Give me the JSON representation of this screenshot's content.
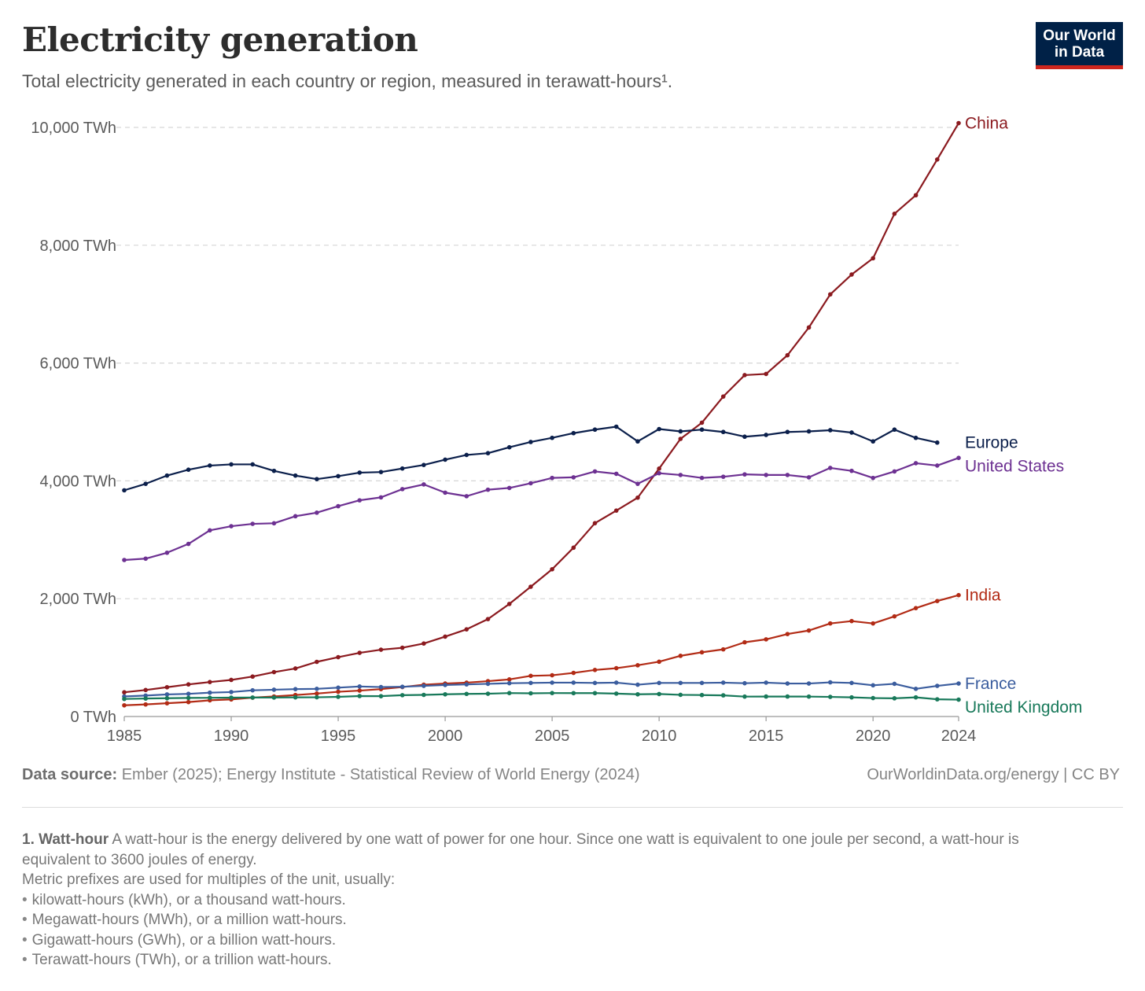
{
  "header": {
    "title": "Electricity generation",
    "subtitle": "Total electricity generated in each country or region, measured in terawatt-hours¹.",
    "logo_line1": "Our World",
    "logo_line2": "in Data"
  },
  "footer": {
    "source_label": "Data source:",
    "source_text": "Ember (2025); Energy Institute - Statistical Review of World Energy (2024)",
    "license": "OurWorldinData.org/energy | CC BY"
  },
  "notes": {
    "num": "1.",
    "term": "Watt-hour",
    "line1": "A watt-hour is the energy delivered by one watt of power for one hour. Since one watt is equivalent to one joule per second, a watt-hour is equivalent to 3600 joules of energy.",
    "line2": "Metric prefixes are used for multiples of the unit, usually:",
    "bullets": [
      "kilowatt-hours (kWh), or a thousand watt-hours.",
      "Megawatt-hours (MWh), or a million watt-hours.",
      "Gigawatt-hours (GWh), or a billion watt-hours.",
      "Terawatt-hours (TWh), or a trillion watt-hours."
    ]
  },
  "chart_data": {
    "type": "line",
    "title": "Electricity generation",
    "subtitle": "Total electricity generated in each country or region, measured in terawatt-hours¹.",
    "xlim": [
      1985,
      2024
    ],
    "ylim": [
      0,
      10000
    ],
    "x_ticks": [
      1985,
      1990,
      1995,
      2000,
      2005,
      2010,
      2015,
      2020,
      2024
    ],
    "y_ticks": [
      {
        "value": 0,
        "label": "0 TWh"
      },
      {
        "value": 2000,
        "label": "2,000 TWh"
      },
      {
        "value": 4000,
        "label": "4,000 TWh"
      },
      {
        "value": 6000,
        "label": "6,000 TWh"
      },
      {
        "value": 8000,
        "label": "8,000 TWh"
      },
      {
        "value": 10000,
        "label": "10,000 TWh"
      }
    ],
    "grid": "horizontal dashed",
    "legend": "inline labels at line ends (right)",
    "series": [
      {
        "name": "China",
        "color": "#8b1a1f",
        "x": [
          1985,
          1986,
          1987,
          1988,
          1989,
          1990,
          1991,
          1992,
          1993,
          1994,
          1995,
          1996,
          1997,
          1998,
          1999,
          2000,
          2001,
          2002,
          2003,
          2004,
          2005,
          2006,
          2007,
          2008,
          2009,
          2010,
          2011,
          2012,
          2013,
          2014,
          2015,
          2016,
          2017,
          2018,
          2019,
          2020,
          2021,
          2022,
          2023,
          2024
        ],
        "values": [
          411,
          450,
          497,
          545,
          585,
          621,
          678,
          754,
          815,
          928,
          1007,
          1081,
          1134,
          1167,
          1239,
          1356,
          1480,
          1654,
          1911,
          2203,
          2500,
          2866,
          3282,
          3496,
          3715,
          4208,
          4713,
          4988,
          5432,
          5795,
          5815,
          6133,
          6604,
          7166,
          7503,
          7779,
          8534,
          8849,
          9456,
          10073
        ]
      },
      {
        "name": "Europe",
        "color": "#0b1f4b",
        "x": [
          1985,
          1986,
          1987,
          1988,
          1989,
          1990,
          1991,
          1992,
          1993,
          1994,
          1995,
          1996,
          1997,
          1998,
          1999,
          2000,
          2001,
          2002,
          2003,
          2004,
          2005,
          2006,
          2007,
          2008,
          2009,
          2010,
          2011,
          2012,
          2013,
          2014,
          2015,
          2016,
          2017,
          2018,
          2019,
          2020,
          2021,
          2022,
          2023
        ],
        "values": [
          3840,
          3950,
          4090,
          4190,
          4260,
          4280,
          4280,
          4170,
          4090,
          4030,
          4080,
          4140,
          4150,
          4210,
          4270,
          4360,
          4440,
          4470,
          4570,
          4660,
          4730,
          4810,
          4870,
          4920,
          4670,
          4880,
          4840,
          4870,
          4830,
          4750,
          4780,
          4830,
          4840,
          4860,
          4820,
          4670,
          4870,
          4730,
          4650
        ]
      },
      {
        "name": "United States",
        "color": "#6d3192",
        "x": [
          1985,
          1986,
          1987,
          1988,
          1989,
          1990,
          1991,
          1992,
          1993,
          1994,
          1995,
          1996,
          1997,
          1998,
          1999,
          2000,
          2001,
          2002,
          2003,
          2004,
          2005,
          2006,
          2007,
          2008,
          2009,
          2010,
          2011,
          2012,
          2013,
          2014,
          2015,
          2016,
          2017,
          2018,
          2019,
          2020,
          2021,
          2022,
          2023,
          2024
        ],
        "values": [
          2657,
          2680,
          2780,
          2930,
          3160,
          3230,
          3270,
          3280,
          3400,
          3460,
          3570,
          3670,
          3720,
          3860,
          3940,
          3800,
          3740,
          3850,
          3880,
          3960,
          4050,
          4060,
          4160,
          4120,
          3950,
          4130,
          4100,
          4050,
          4070,
          4110,
          4100,
          4100,
          4060,
          4220,
          4170,
          4050,
          4160,
          4300,
          4260,
          4390
        ]
      },
      {
        "name": "India",
        "color": "#b22b15",
        "x": [
          1985,
          1986,
          1987,
          1988,
          1989,
          1990,
          1991,
          1992,
          1993,
          1994,
          1995,
          1996,
          1997,
          1998,
          1999,
          2000,
          2001,
          2002,
          2003,
          2004,
          2005,
          2006,
          2007,
          2008,
          2009,
          2010,
          2011,
          2012,
          2013,
          2014,
          2015,
          2016,
          2017,
          2018,
          2019,
          2020,
          2021,
          2022,
          2023,
          2024
        ],
        "values": [
          190,
          205,
          225,
          245,
          275,
          290,
          320,
          340,
          365,
          390,
          420,
          440,
          465,
          500,
          540,
          560,
          575,
          600,
          630,
          690,
          700,
          740,
          790,
          820,
          870,
          930,
          1030,
          1090,
          1140,
          1260,
          1310,
          1400,
          1460,
          1580,
          1620,
          1580,
          1700,
          1840,
          1960,
          2060
        ]
      },
      {
        "name": "France",
        "color": "#3b5d9e",
        "x": [
          1985,
          1986,
          1987,
          1988,
          1989,
          1990,
          1991,
          1992,
          1993,
          1994,
          1995,
          1996,
          1997,
          1998,
          1999,
          2000,
          2001,
          2002,
          2003,
          2004,
          2005,
          2006,
          2007,
          2008,
          2009,
          2010,
          2011,
          2012,
          2013,
          2014,
          2015,
          2016,
          2017,
          2018,
          2019,
          2020,
          2021,
          2022,
          2023,
          2024
        ],
        "values": [
          340,
          355,
          375,
          385,
          405,
          415,
          445,
          455,
          465,
          470,
          490,
          510,
          500,
          505,
          520,
          535,
          545,
          555,
          565,
          570,
          575,
          575,
          570,
          575,
          540,
          570,
          570,
          570,
          575,
          565,
          575,
          560,
          560,
          580,
          570,
          530,
          555,
          470,
          520,
          560
        ]
      },
      {
        "name": "United Kingdom",
        "color": "#18795a",
        "x": [
          1985,
          1986,
          1987,
          1988,
          1989,
          1990,
          1991,
          1992,
          1993,
          1994,
          1995,
          1996,
          1997,
          1998,
          1999,
          2000,
          2001,
          2002,
          2003,
          2004,
          2005,
          2006,
          2007,
          2008,
          2009,
          2010,
          2011,
          2012,
          2013,
          2014,
          2015,
          2016,
          2017,
          2018,
          2019,
          2020,
          2021,
          2022,
          2023,
          2024
        ],
        "values": [
          298,
          305,
          310,
          315,
          318,
          320,
          322,
          322,
          325,
          326,
          334,
          347,
          345,
          362,
          367,
          377,
          384,
          387,
          398,
          394,
          398,
          397,
          397,
          389,
          377,
          382,
          368,
          364,
          359,
          338,
          339,
          339,
          338,
          333,
          325,
          313,
          309,
          325,
          292,
          286
        ]
      }
    ]
  }
}
